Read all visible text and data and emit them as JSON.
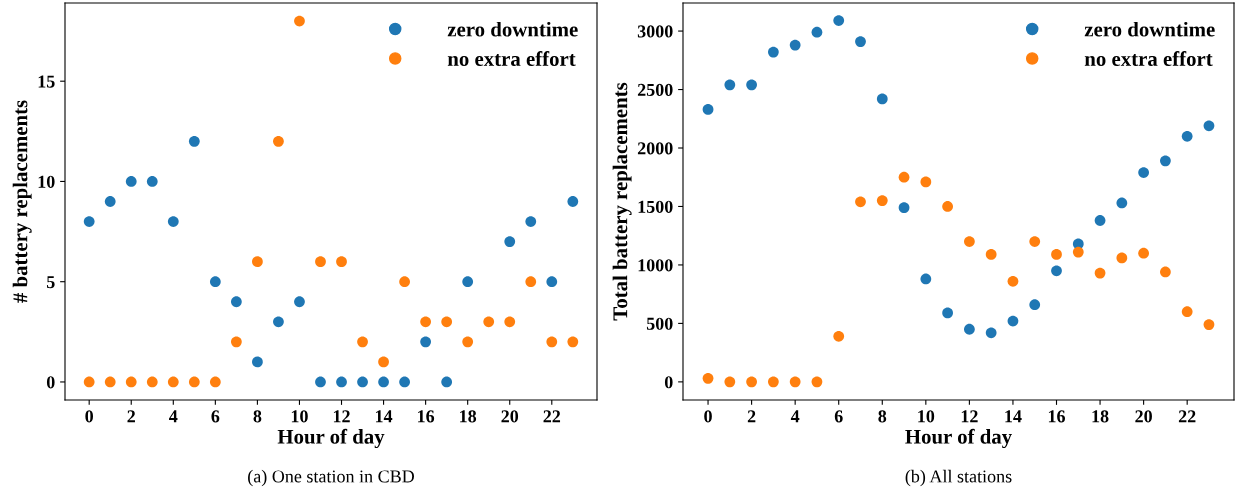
{
  "chart_data": [
    {
      "type": "scatter",
      "xlabel": "Hour of day",
      "ylabel": "# battery replacements",
      "annotations": [
        "(a) One station in CBD"
      ],
      "x": [
        0,
        1,
        2,
        3,
        4,
        5,
        6,
        7,
        8,
        9,
        10,
        11,
        12,
        13,
        14,
        15,
        16,
        17,
        18,
        19,
        20,
        21,
        22,
        23
      ],
      "series": [
        {
          "name": "zero downtime",
          "color": "#1f77b4",
          "values": [
            8,
            9,
            10,
            10,
            8,
            12,
            5,
            4,
            1,
            3,
            4,
            0,
            0,
            0,
            0,
            0,
            2,
            0,
            5,
            null,
            7,
            8,
            5,
            9
          ]
        },
        {
          "name": "no extra effort",
          "color": "#ff7f0e",
          "values": [
            0,
            0,
            0,
            0,
            0,
            0,
            0,
            2,
            6,
            12,
            18,
            6,
            6,
            2,
            1,
            5,
            3,
            3,
            2,
            3,
            3,
            5,
            2,
            2
          ]
        }
      ],
      "xlim": [
        -1.15,
        24.15
      ],
      "xticks": [
        0,
        2,
        4,
        6,
        8,
        10,
        12,
        14,
        16,
        18,
        20,
        22
      ],
      "ylim": [
        -0.9,
        18.9
      ],
      "yticks": [
        0,
        5,
        10,
        15
      ],
      "legend": "top right",
      "marker": "circle",
      "grid": false
    },
    {
      "type": "scatter",
      "xlabel": "Hour of day",
      "ylabel": "Total battery replacements",
      "annotations": [
        "(b) All stations"
      ],
      "x": [
        0,
        1,
        2,
        3,
        4,
        5,
        6,
        7,
        8,
        9,
        10,
        11,
        12,
        13,
        14,
        15,
        16,
        17,
        18,
        19,
        20,
        21,
        22,
        23
      ],
      "series": [
        {
          "name": "zero downtime",
          "color": "#1f77b4",
          "values": [
            2330,
            2540,
            2540,
            2820,
            2880,
            2990,
            3090,
            2910,
            2420,
            1490,
            880,
            590,
            450,
            420,
            520,
            660,
            950,
            1180,
            1380,
            1530,
            1790,
            1890,
            2100,
            2190
          ]
        },
        {
          "name": "no extra effort",
          "color": "#ff7f0e",
          "values": [
            30,
            0,
            0,
            0,
            0,
            0,
            390,
            1540,
            1550,
            1750,
            1710,
            1500,
            1200,
            1090,
            860,
            1200,
            1090,
            1110,
            930,
            1060,
            1100,
            940,
            600,
            490
          ]
        }
      ],
      "xlim": [
        -1.15,
        24.15
      ],
      "xticks": [
        0,
        2,
        4,
        6,
        8,
        10,
        12,
        14,
        16,
        18,
        20,
        22
      ],
      "ylim": [
        -155,
        3240
      ],
      "yticks": [
        0,
        500,
        1000,
        1500,
        2000,
        2500,
        3000
      ],
      "legend": "top right",
      "marker": "circle",
      "grid": false
    }
  ]
}
